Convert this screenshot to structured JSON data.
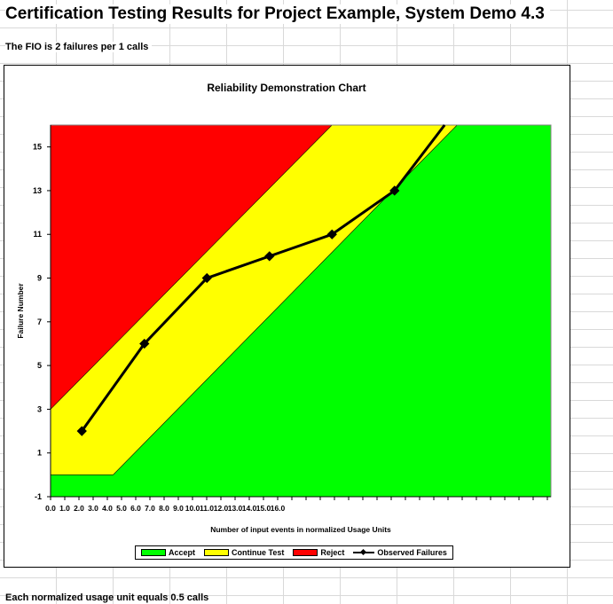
{
  "header": {
    "title": "Certification Testing Results for Project Example, System Demo 4.3",
    "fio_text": "The FIO is 2 failures per 1 calls"
  },
  "footer": {
    "note": "Each normalized usage unit equals 0.5 calls"
  },
  "legend": {
    "items": [
      {
        "label": "Accept",
        "color": "#00ff00",
        "kind": "swatch"
      },
      {
        "label": "Continue Test",
        "color": "#ffff00",
        "kind": "swatch"
      },
      {
        "label": "Reject",
        "color": "#ff0000",
        "kind": "swatch"
      },
      {
        "label": "Observed Failures",
        "color": "#000000",
        "kind": "line"
      }
    ]
  },
  "chart_data": {
    "type": "area",
    "title": "Reliability Demonstration Chart",
    "xlabel": "Number of input events in normalized Usage Units",
    "ylabel": "Failure Number",
    "xlim": [
      0,
      16
    ],
    "ylim": [
      -1,
      16
    ],
    "x_ticks": [
      "0.0",
      "1.0",
      "2.0",
      "3.0",
      "4.0",
      "5.0",
      "6.0",
      "7.0",
      "8.0",
      "9.0",
      "10.0",
      "11.0",
      "12.0",
      "13.0",
      "14.0",
      "15.0",
      "16.0"
    ],
    "y_ticks": [
      "-1",
      "1",
      "3",
      "5",
      "7",
      "9",
      "11",
      "13",
      "15"
    ],
    "grid": "horizontal",
    "legend_position": "bottom",
    "colors": {
      "accept": "#00ff00",
      "continue": "#ffff00",
      "reject": "#ff0000",
      "beyond": "#c0c0c0",
      "plot_bg": "#ffffff"
    },
    "regions": {
      "reject_boundary": [
        [
          0,
          3
        ],
        [
          9.0,
          16
        ]
      ],
      "accept_boundary": [
        [
          0,
          0
        ],
        [
          2.0,
          0
        ],
        [
          13.0,
          16
        ]
      ],
      "data_extent_x": 16
    },
    "series": [
      {
        "name": "Observed Failures",
        "x": [
          1.0,
          3.0,
          5.0,
          7.0,
          9.0,
          11.0,
          12.6
        ],
        "y": [
          2,
          6,
          9,
          10,
          11,
          13,
          16
        ]
      }
    ]
  }
}
